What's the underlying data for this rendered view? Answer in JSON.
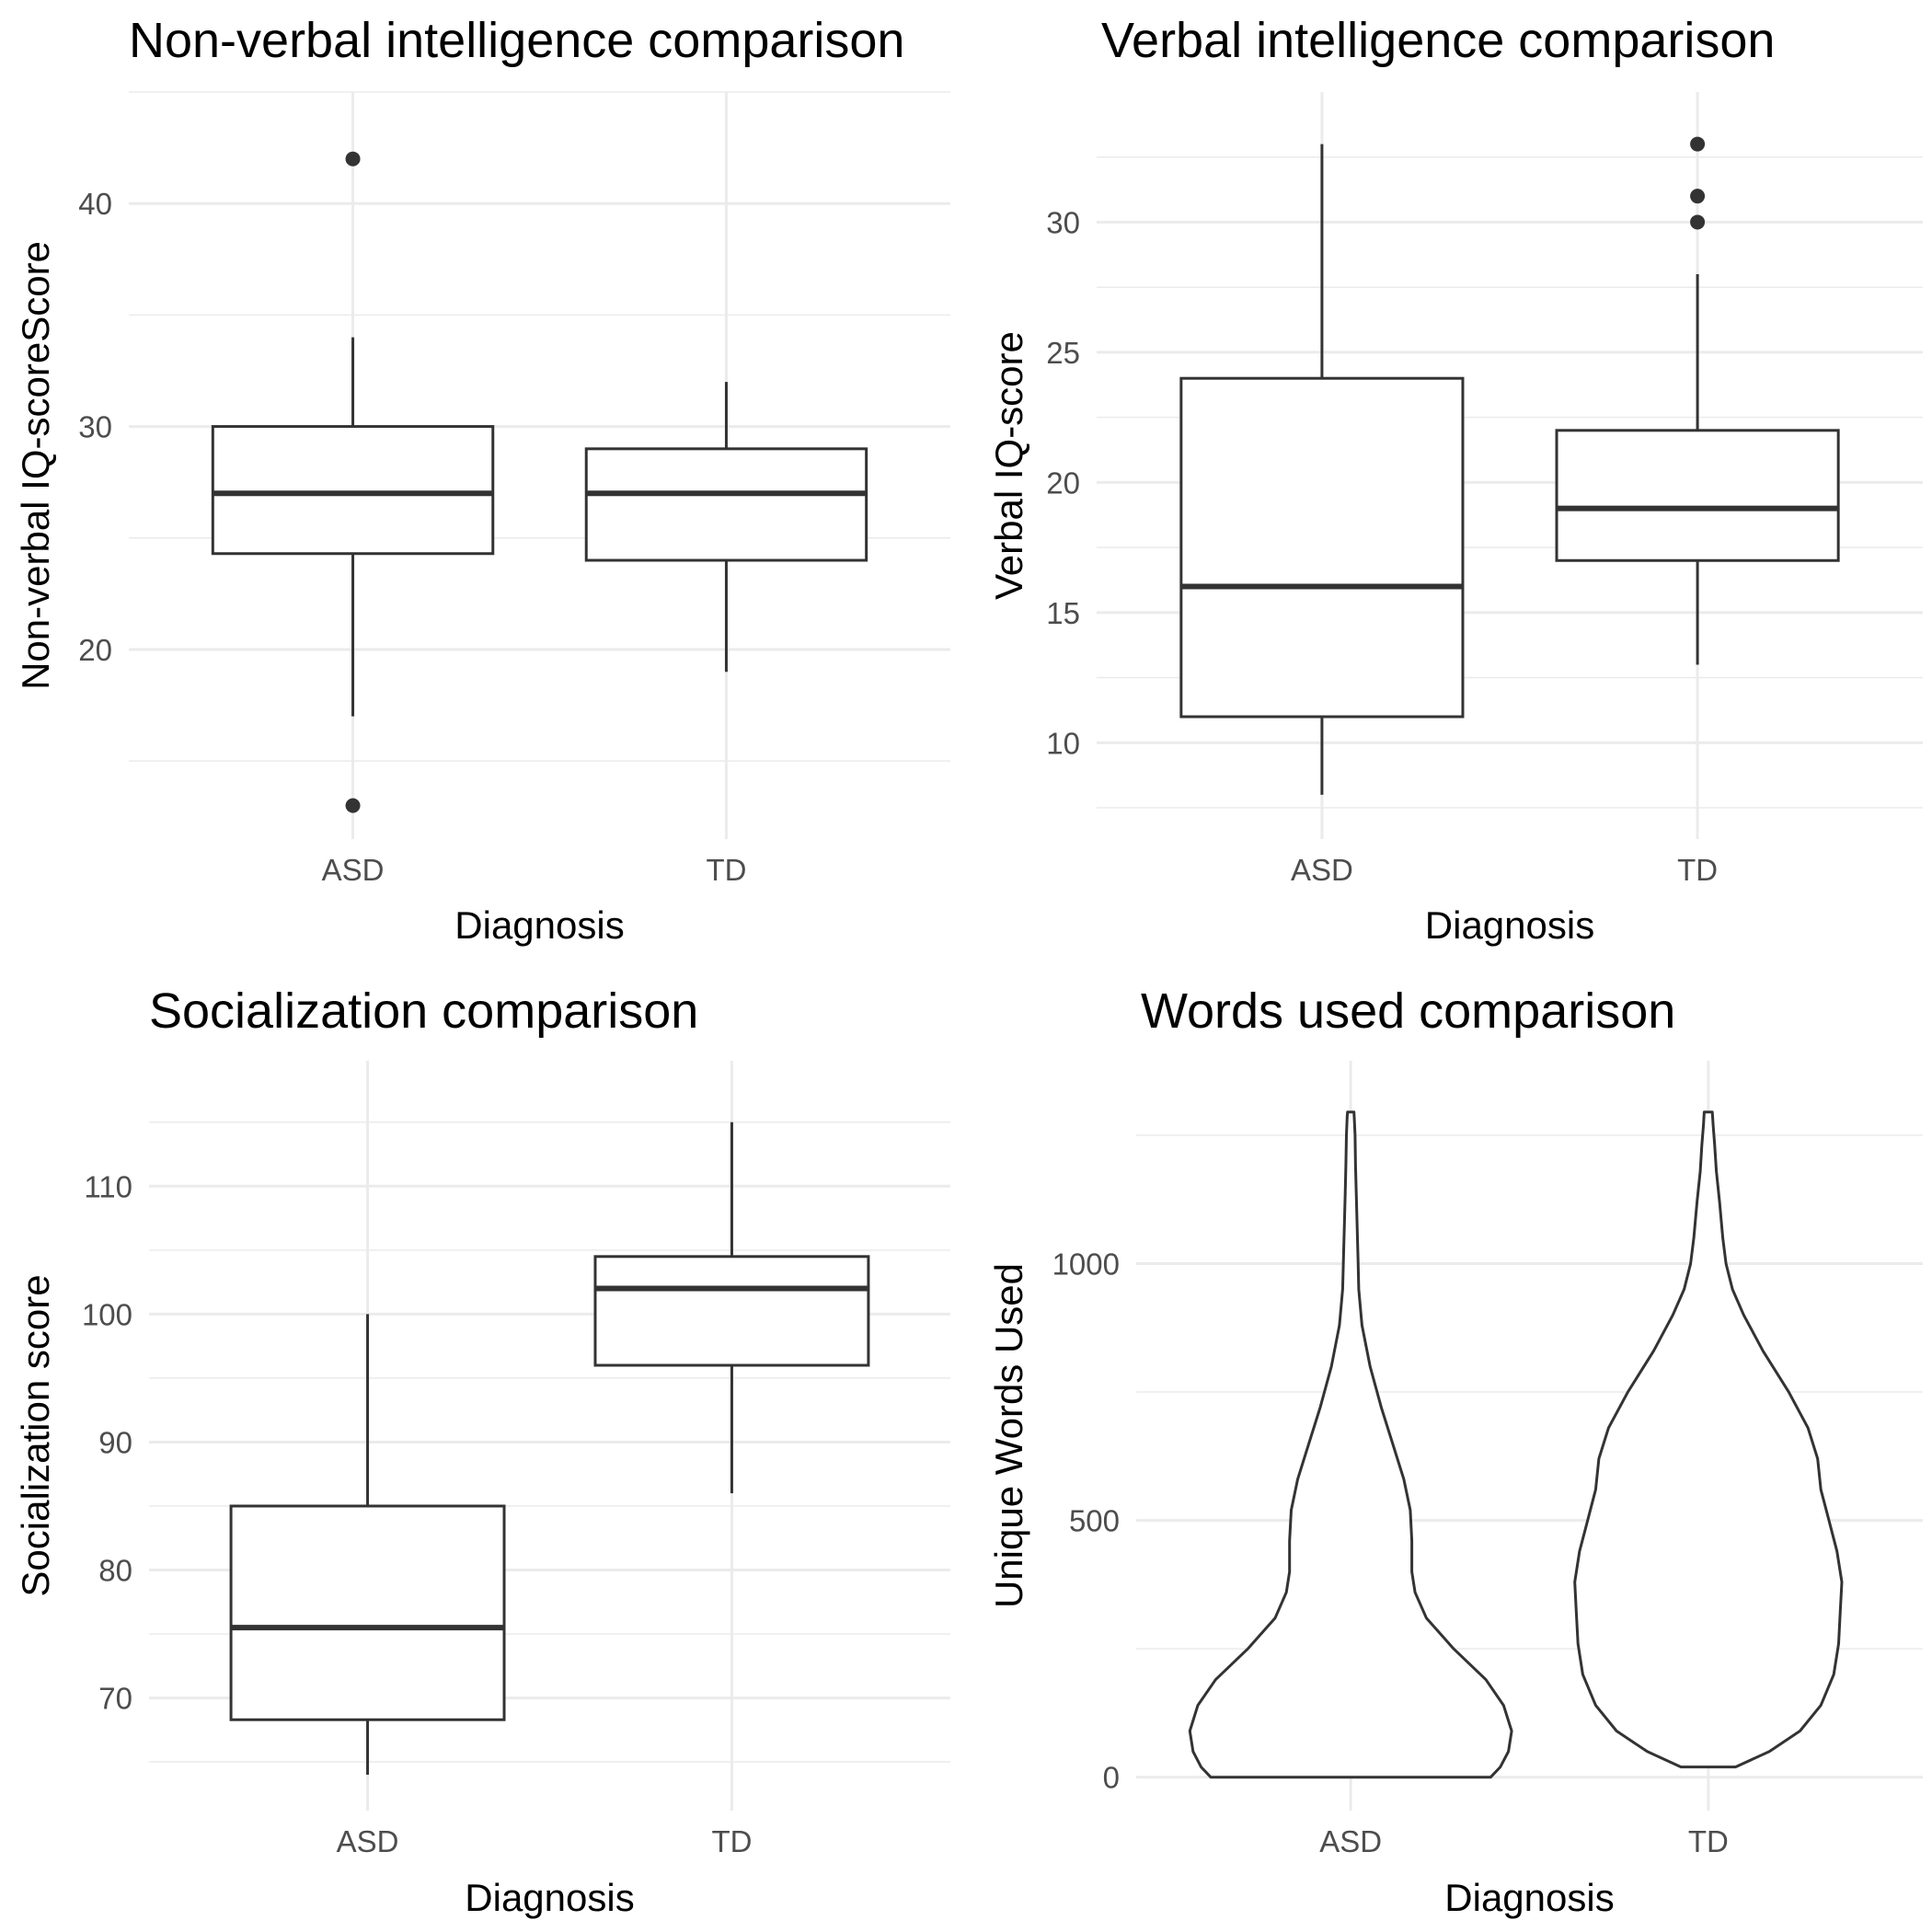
{
  "chart_data": [
    {
      "type": "box",
      "title": "Non-verbal intelligence comparison",
      "xlabel": "Diagnosis",
      "ylabel": "Non-verbal IQ-scoreScore",
      "categories": [
        "ASD",
        "TD"
      ],
      "ylim": [
        11.5,
        45
      ],
      "yticks": [
        20,
        30,
        40
      ],
      "grid": true,
      "boxes": [
        {
          "category": "ASD",
          "whisker_low": 17,
          "q1": 24.3,
          "median": 27,
          "q3": 30,
          "whisker_high": 34,
          "outliers": [
            42,
            13
          ]
        },
        {
          "category": "TD",
          "whisker_low": 19,
          "q1": 24,
          "median": 27,
          "q3": 29,
          "whisker_high": 32,
          "outliers": []
        }
      ]
    },
    {
      "type": "box",
      "title": "Verbal intelligence comparison",
      "xlabel": "Diagnosis",
      "ylabel": "Verbal IQ-score",
      "categories": [
        "ASD",
        "TD"
      ],
      "ylim": [
        6.3,
        35
      ],
      "yticks": [
        10,
        15,
        20,
        25,
        30
      ],
      "grid": true,
      "boxes": [
        {
          "category": "ASD",
          "whisker_low": 8,
          "q1": 11,
          "median": 16,
          "q3": 24,
          "whisker_high": 33,
          "outliers": []
        },
        {
          "category": "TD",
          "whisker_low": 13,
          "q1": 17,
          "median": 19,
          "q3": 22,
          "whisker_high": 28,
          "outliers": [
            33,
            31,
            30
          ]
        }
      ]
    },
    {
      "type": "box",
      "title": "Socialization comparison",
      "xlabel": "Diagnosis",
      "ylabel": "Socialization score",
      "categories": [
        "ASD",
        "TD"
      ],
      "ylim": [
        61.2,
        119.8
      ],
      "yticks": [
        70,
        80,
        90,
        100,
        110
      ],
      "grid": true,
      "boxes": [
        {
          "category": "ASD",
          "whisker_low": 64,
          "q1": 68.3,
          "median": 75.5,
          "q3": 85,
          "whisker_high": 100,
          "outliers": []
        },
        {
          "category": "TD",
          "whisker_low": 86,
          "q1": 96,
          "median": 102,
          "q3": 104.5,
          "whisker_high": 115,
          "outliers": []
        }
      ]
    },
    {
      "type": "violin",
      "title": "Words used comparison",
      "xlabel": "Diagnosis",
      "ylabel": "Unique Words Used",
      "categories": [
        "ASD",
        "TD"
      ],
      "ylim": [
        -65,
        1395
      ],
      "yticks": [
        0,
        500,
        1000
      ],
      "grid": true,
      "violins": [
        {
          "category": "ASD",
          "profile": [
            [
              0,
              0.87
            ],
            [
              20,
              0.93
            ],
            [
              50,
              0.98
            ],
            [
              90,
              1.0
            ],
            [
              140,
              0.95
            ],
            [
              190,
              0.84
            ],
            [
              250,
              0.64
            ],
            [
              310,
              0.47
            ],
            [
              360,
              0.4
            ],
            [
              400,
              0.38
            ],
            [
              460,
              0.38
            ],
            [
              520,
              0.37
            ],
            [
              580,
              0.33
            ],
            [
              650,
              0.26
            ],
            [
              720,
              0.19
            ],
            [
              800,
              0.12
            ],
            [
              880,
              0.07
            ],
            [
              950,
              0.05
            ],
            [
              1010,
              0.045
            ],
            [
              1070,
              0.04
            ],
            [
              1130,
              0.035
            ],
            [
              1190,
              0.03
            ],
            [
              1250,
              0.027
            ],
            [
              1285,
              0.022
            ],
            [
              1295,
              0.02
            ]
          ]
        },
        {
          "category": "TD",
          "profile": [
            [
              20,
              0.17
            ],
            [
              50,
              0.38
            ],
            [
              90,
              0.57
            ],
            [
              140,
              0.7
            ],
            [
              200,
              0.78
            ],
            [
              260,
              0.81
            ],
            [
              320,
              0.82
            ],
            [
              380,
              0.83
            ],
            [
              440,
              0.8
            ],
            [
              500,
              0.75
            ],
            [
              560,
              0.7
            ],
            [
              620,
              0.68
            ],
            [
              680,
              0.62
            ],
            [
              750,
              0.5
            ],
            [
              830,
              0.34
            ],
            [
              900,
              0.22
            ],
            [
              950,
              0.15
            ],
            [
              1000,
              0.11
            ],
            [
              1050,
              0.09
            ],
            [
              1120,
              0.07
            ],
            [
              1180,
              0.05
            ],
            [
              1230,
              0.04
            ],
            [
              1270,
              0.03
            ],
            [
              1295,
              0.025
            ]
          ]
        }
      ]
    }
  ]
}
